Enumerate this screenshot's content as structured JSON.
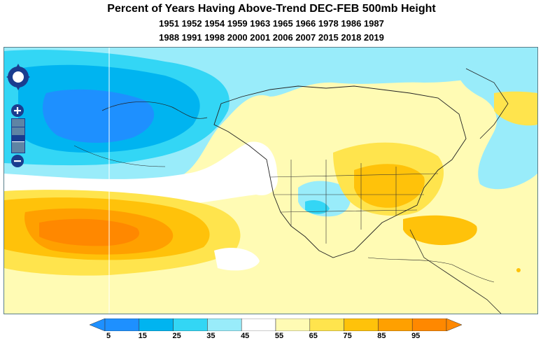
{
  "title": "Percent of Years Having Above-Trend DEC-FEB 500mb Height",
  "years_line1": "1951 1952 1954 1959 1963 1965 1966 1978 1986 1987",
  "years_line2": "1988 1991 1998 2000 2001 2006 2007 2015 2018 2019",
  "colorbar": {
    "labels": [
      "5",
      "15",
      "25",
      "35",
      "45",
      "55",
      "65",
      "75",
      "85",
      "95"
    ],
    "colors": [
      "#1e90ff",
      "#00b4f0",
      "#33d6f5",
      "#99ecfa",
      "#ffffff",
      "#fffbb4",
      "#ffe44d",
      "#ffc20a",
      "#ffa000",
      "#ff8800"
    ]
  },
  "controls": {
    "pan": "pan-control",
    "zoom_in": "+",
    "zoom_out": "−"
  }
}
